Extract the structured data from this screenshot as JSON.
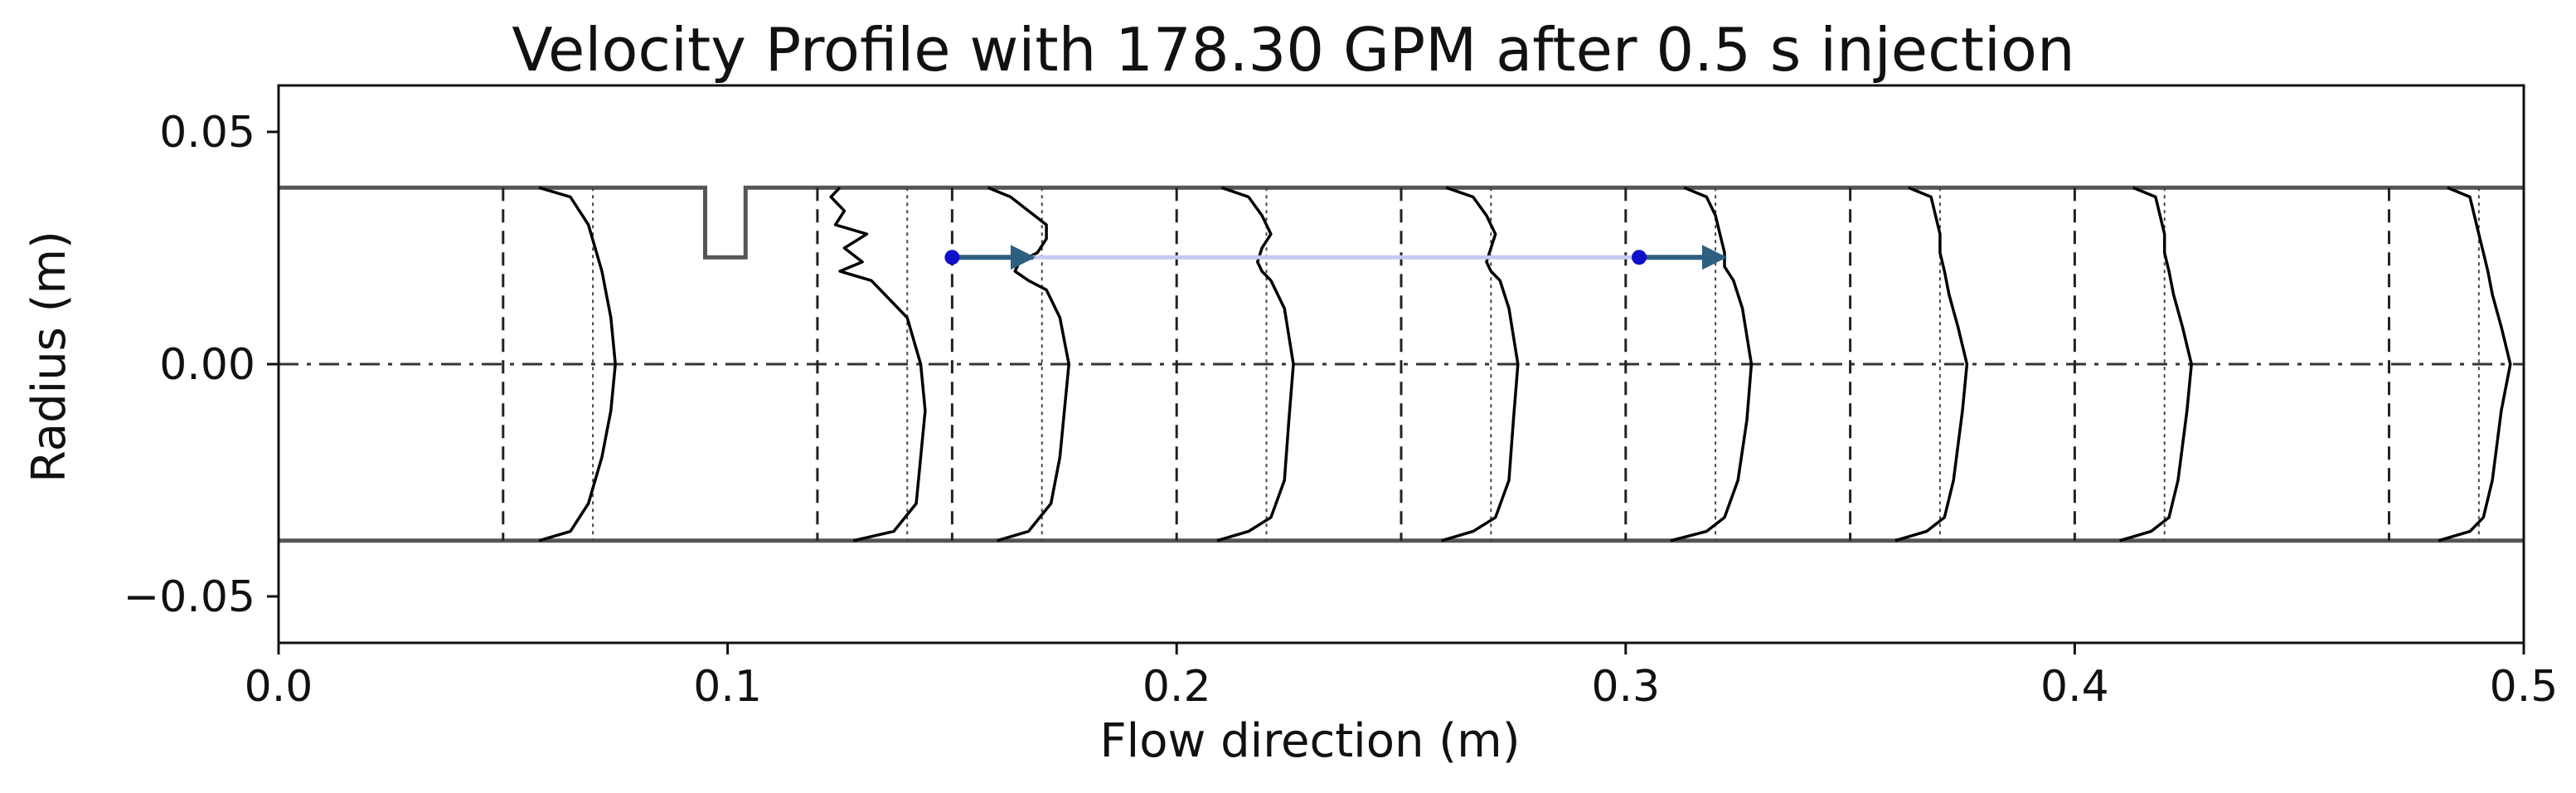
{
  "chart_data": {
    "type": "line",
    "title": "Velocity Profile with 178.30 GPM after 0.5 s injection",
    "xlabel": "Flow direction (m)",
    "ylabel": "Radius (m)",
    "xlim": [
      0.0,
      0.5
    ],
    "ylim": [
      -0.06,
      0.06
    ],
    "x_ticks": [
      0.0,
      0.1,
      0.2,
      0.3,
      0.4,
      0.5
    ],
    "x_tick_labels": [
      "0.0",
      "0.1",
      "0.2",
      "0.3",
      "0.4",
      "0.5"
    ],
    "y_ticks": [
      -0.05,
      0.0,
      0.05
    ],
    "y_tick_labels": [
      "−0.05",
      "0.00",
      "0.05"
    ],
    "grid": false,
    "pipe_wall_radius": 0.038,
    "centerline_y": 0.0,
    "obstacle": {
      "x_start": 0.095,
      "x_end": 0.104,
      "y_bottom": 0.023
    },
    "profiles": [
      {
        "x0": 0.05,
        "ref_x": 0.07,
        "radius": [
          0.038,
          0.036,
          0.03,
          0.02,
          0.01,
          0.0,
          -0.01,
          -0.02,
          -0.03,
          -0.036,
          -0.038
        ],
        "velocity_x": [
          0.058,
          0.065,
          0.069,
          0.072,
          0.074,
          0.075,
          0.074,
          0.072,
          0.069,
          0.065,
          0.058
        ]
      },
      {
        "x0": 0.12,
        "ref_x": 0.14,
        "radius": [
          0.038,
          0.036,
          0.033,
          0.03,
          0.028,
          0.025,
          0.022,
          0.02,
          0.018,
          0.015,
          0.01,
          0.0,
          -0.01,
          -0.02,
          -0.03,
          -0.036,
          -0.038
        ],
        "velocity_x": [
          0.125,
          0.123,
          0.126,
          0.124,
          0.131,
          0.126,
          0.13,
          0.125,
          0.132,
          0.135,
          0.14,
          0.143,
          0.144,
          0.143,
          0.142,
          0.137,
          0.128
        ]
      },
      {
        "x0": 0.15,
        "ref_x": 0.17,
        "radius": [
          0.038,
          0.036,
          0.033,
          0.03,
          0.027,
          0.024,
          0.022,
          0.02,
          0.018,
          0.016,
          0.01,
          0.0,
          -0.01,
          -0.02,
          -0.03,
          -0.036,
          -0.038
        ],
        "velocity_x": [
          0.158,
          0.163,
          0.167,
          0.171,
          0.171,
          0.169,
          0.165,
          0.164,
          0.167,
          0.171,
          0.174,
          0.176,
          0.175,
          0.174,
          0.172,
          0.167,
          0.16
        ]
      },
      {
        "x0": 0.2,
        "ref_x": 0.22,
        "radius": [
          0.038,
          0.036,
          0.032,
          0.028,
          0.025,
          0.022,
          0.02,
          0.018,
          0.012,
          0.0,
          -0.012,
          -0.025,
          -0.033,
          -0.036,
          -0.038
        ],
        "velocity_x": [
          0.21,
          0.216,
          0.219,
          0.221,
          0.219,
          0.218,
          0.219,
          0.221,
          0.224,
          0.226,
          0.225,
          0.224,
          0.221,
          0.216,
          0.209
        ]
      },
      {
        "x0": 0.25,
        "ref_x": 0.27,
        "radius": [
          0.038,
          0.036,
          0.032,
          0.028,
          0.025,
          0.022,
          0.02,
          0.018,
          0.012,
          0.0,
          -0.012,
          -0.025,
          -0.033,
          -0.036,
          -0.038
        ],
        "velocity_x": [
          0.26,
          0.266,
          0.269,
          0.271,
          0.27,
          0.269,
          0.27,
          0.272,
          0.274,
          0.276,
          0.275,
          0.274,
          0.271,
          0.266,
          0.259
        ]
      },
      {
        "x0": 0.3,
        "ref_x": 0.32,
        "radius": [
          0.038,
          0.036,
          0.032,
          0.028,
          0.024,
          0.021,
          0.018,
          0.012,
          0.0,
          -0.012,
          -0.025,
          -0.033,
          -0.036,
          -0.038
        ],
        "velocity_x": [
          0.313,
          0.318,
          0.32,
          0.321,
          0.322,
          0.322,
          0.324,
          0.326,
          0.328,
          0.327,
          0.325,
          0.322,
          0.318,
          0.31
        ]
      },
      {
        "x0": 0.35,
        "ref_x": 0.37,
        "radius": [
          0.038,
          0.036,
          0.032,
          0.028,
          0.024,
          0.02,
          0.015,
          0.008,
          0.0,
          -0.01,
          -0.025,
          -0.033,
          -0.036,
          -0.038
        ],
        "velocity_x": [
          0.363,
          0.368,
          0.369,
          0.37,
          0.37,
          0.371,
          0.372,
          0.374,
          0.376,
          0.375,
          0.373,
          0.371,
          0.367,
          0.36
        ]
      },
      {
        "x0": 0.4,
        "ref_x": 0.42,
        "radius": [
          0.038,
          0.036,
          0.032,
          0.028,
          0.024,
          0.02,
          0.015,
          0.008,
          0.0,
          -0.01,
          -0.025,
          -0.033,
          -0.036,
          -0.038
        ],
        "velocity_x": [
          0.413,
          0.418,
          0.419,
          0.42,
          0.42,
          0.421,
          0.422,
          0.424,
          0.426,
          0.425,
          0.423,
          0.421,
          0.417,
          0.41
        ]
      },
      {
        "x0": 0.47,
        "ref_x": 0.49,
        "radius": [
          0.038,
          0.036,
          0.032,
          0.028,
          0.024,
          0.02,
          0.015,
          0.008,
          0.0,
          -0.01,
          -0.025,
          -0.033,
          -0.036,
          -0.038
        ],
        "velocity_x": [
          0.483,
          0.488,
          0.489,
          0.49,
          0.491,
          0.492,
          0.493,
          0.495,
          0.497,
          0.495,
          0.493,
          0.491,
          0.488,
          0.481
        ]
      }
    ],
    "tracer": {
      "y": 0.023,
      "x_start": 0.15,
      "x_end": 0.303
    },
    "arrows": [
      {
        "x_start": 0.15,
        "x_end": 0.168,
        "y": 0.023
      },
      {
        "x_start": 0.303,
        "x_end": 0.322,
        "y": 0.023
      }
    ],
    "colors": {
      "profile": "#000000",
      "wall": "#555555",
      "arrow": "#2d5f7f",
      "arrow_tail": "#1010c8",
      "tracer": "#c8c8f0"
    }
  }
}
